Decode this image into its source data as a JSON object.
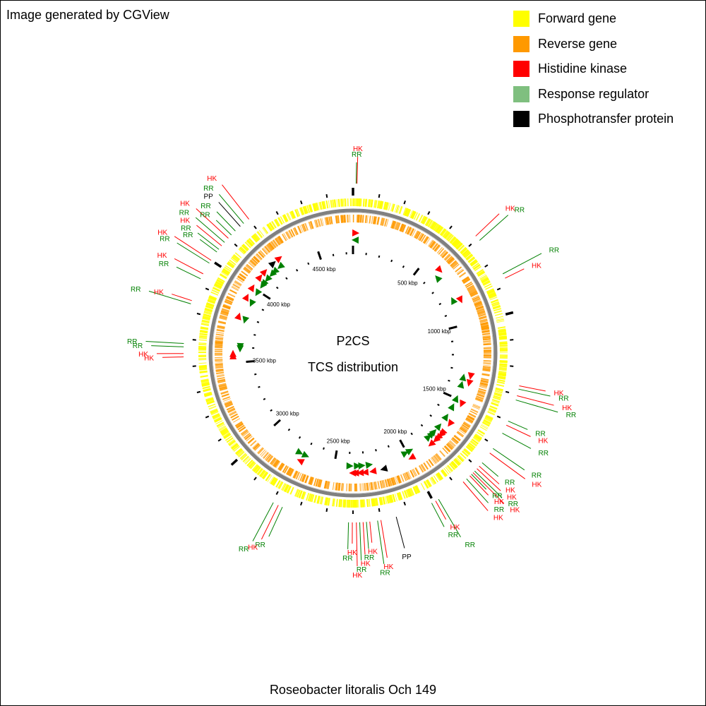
{
  "header": "Image generated by CGView",
  "legend": [
    {
      "label": "Forward gene",
      "color": "#ffff00"
    },
    {
      "label": "Reverse gene",
      "color": "#ff9900"
    },
    {
      "label": "Histidine kinase",
      "color": "#ff0000"
    },
    {
      "label": "Response regulator",
      "color": "#7fbf7f"
    },
    {
      "label": "Phosphotransfer protein",
      "color": "#000000"
    }
  ],
  "center_title": "P2CS",
  "center_subtitle": "TCS distribution",
  "organism": "Roseobacter litoralis Och 149",
  "genome_length_kbp": 4750,
  "ruler_labels": [
    {
      "kbp": 500,
      "label": "500 kbp"
    },
    {
      "kbp": 1000,
      "label": "1000 kbp"
    },
    {
      "kbp": 1500,
      "label": "1500 kbp"
    },
    {
      "kbp": 2000,
      "label": "2000 kbp"
    },
    {
      "kbp": 2500,
      "label": "2500 kbp"
    },
    {
      "kbp": 3000,
      "label": "3000 kbp"
    },
    {
      "kbp": 3500,
      "label": "3500 kbp"
    },
    {
      "kbp": 4000,
      "label": "4000 kbp"
    },
    {
      "kbp": 4500,
      "label": "4500 kbp"
    }
  ],
  "colors": {
    "HK": "#ff0000",
    "RR": "#008000",
    "PP": "#000000",
    "forward": "#ffff00",
    "reverse": "#ff9900",
    "backbone": "#808080"
  },
  "features": [
    {
      "type": "RR",
      "pos_kbp": 14,
      "strand": "reverse"
    },
    {
      "type": "HK",
      "pos_kbp": 18,
      "strand": "forward"
    },
    {
      "type": "HK",
      "pos_kbp": 612,
      "strand": "forward"
    },
    {
      "type": "RR",
      "pos_kbp": 638,
      "strand": "reverse"
    },
    {
      "type": "RR",
      "pos_kbp": 820,
      "strand": "reverse"
    },
    {
      "type": "HK",
      "pos_kbp": 842,
      "strand": "forward"
    },
    {
      "type": "HK",
      "pos_kbp": 1335,
      "strand": "forward"
    },
    {
      "type": "RR",
      "pos_kbp": 1350,
      "strand": "reverse"
    },
    {
      "type": "HK",
      "pos_kbp": 1380,
      "strand": "forward"
    },
    {
      "type": "RR",
      "pos_kbp": 1400,
      "strand": "reverse"
    },
    {
      "type": "RR",
      "pos_kbp": 1500,
      "strand": "reverse"
    },
    {
      "type": "HK",
      "pos_kbp": 1520,
      "strand": "forward"
    },
    {
      "type": "RR",
      "pos_kbp": 1560,
      "strand": "reverse"
    },
    {
      "type": "RR",
      "pos_kbp": 1640,
      "strand": "reverse"
    },
    {
      "type": "HK",
      "pos_kbp": 1665,
      "strand": "forward"
    },
    {
      "type": "RR",
      "pos_kbp": 1720,
      "strand": "reverse"
    },
    {
      "type": "HK",
      "pos_kbp": 1740,
      "strand": "forward"
    },
    {
      "type": "HK",
      "pos_kbp": 1755,
      "strand": "forward"
    },
    {
      "type": "RR",
      "pos_kbp": 1770,
      "strand": "reverse"
    },
    {
      "type": "HK",
      "pos_kbp": 1780,
      "strand": "forward"
    },
    {
      "type": "RR",
      "pos_kbp": 1790,
      "strand": "reverse"
    },
    {
      "type": "HK",
      "pos_kbp": 1800,
      "strand": "forward"
    },
    {
      "type": "RR",
      "pos_kbp": 1820,
      "strand": "reverse"
    },
    {
      "type": "HK",
      "pos_kbp": 1840,
      "strand": "forward"
    },
    {
      "type": "RR",
      "pos_kbp": 1975,
      "strand": "reverse"
    },
    {
      "type": "HK",
      "pos_kbp": 1990,
      "strand": "forward"
    },
    {
      "type": "RR",
      "pos_kbp": 2010,
      "strand": "reverse"
    },
    {
      "type": "PP",
      "pos_kbp": 2180,
      "strand": "forward"
    },
    {
      "type": "HK",
      "pos_kbp": 2250,
      "strand": "forward"
    },
    {
      "type": "RR",
      "pos_kbp": 2265,
      "strand": "reverse"
    },
    {
      "type": "HK",
      "pos_kbp": 2300,
      "strand": "forward"
    },
    {
      "type": "RR",
      "pos_kbp": 2315,
      "strand": "reverse"
    },
    {
      "type": "HK",
      "pos_kbp": 2330,
      "strand": "forward"
    },
    {
      "type": "RR",
      "pos_kbp": 2345,
      "strand": "reverse"
    },
    {
      "type": "HK",
      "pos_kbp": 2360,
      "strand": "forward"
    },
    {
      "type": "HK",
      "pos_kbp": 2378,
      "strand": "forward"
    },
    {
      "type": "RR",
      "pos_kbp": 2395,
      "strand": "reverse"
    },
    {
      "type": "RR",
      "pos_kbp": 2700,
      "strand": "reverse"
    },
    {
      "type": "HK",
      "pos_kbp": 2720,
      "strand": "forward"
    },
    {
      "type": "RR",
      "pos_kbp": 2745,
      "strand": "reverse"
    },
    {
      "type": "HK",
      "pos_kbp": 3545,
      "strand": "forward"
    },
    {
      "type": "HK",
      "pos_kbp": 3560,
      "strand": "forward"
    },
    {
      "type": "RR",
      "pos_kbp": 3590,
      "strand": "reverse"
    },
    {
      "type": "RR",
      "pos_kbp": 3605,
      "strand": "reverse"
    },
    {
      "type": "RR",
      "pos_kbp": 3785,
      "strand": "reverse"
    },
    {
      "type": "HK",
      "pos_kbp": 3800,
      "strand": "forward"
    },
    {
      "type": "RR",
      "pos_kbp": 3905,
      "strand": "reverse"
    },
    {
      "type": "HK",
      "pos_kbp": 3930,
      "strand": "forward"
    },
    {
      "type": "RR",
      "pos_kbp": 3985,
      "strand": "reverse"
    },
    {
      "type": "HK",
      "pos_kbp": 4000,
      "strand": "forward"
    },
    {
      "type": "RR",
      "pos_kbp": 4045,
      "strand": "reverse"
    },
    {
      "type": "RR",
      "pos_kbp": 4060,
      "strand": "reverse"
    },
    {
      "type": "HK",
      "pos_kbp": 4080,
      "strand": "forward"
    },
    {
      "type": "RR",
      "pos_kbp": 4100,
      "strand": "reverse"
    },
    {
      "type": "HK",
      "pos_kbp": 4125,
      "strand": "forward"
    },
    {
      "type": "RR",
      "pos_kbp": 4145,
      "strand": "reverse"
    },
    {
      "type": "RR",
      "pos_kbp": 4170,
      "strand": "reverse"
    },
    {
      "type": "PP",
      "pos_kbp": 4200,
      "strand": "forward"
    },
    {
      "type": "RR",
      "pos_kbp": 4220,
      "strand": "reverse"
    },
    {
      "type": "HK",
      "pos_kbp": 4250,
      "strand": "forward"
    }
  ]
}
